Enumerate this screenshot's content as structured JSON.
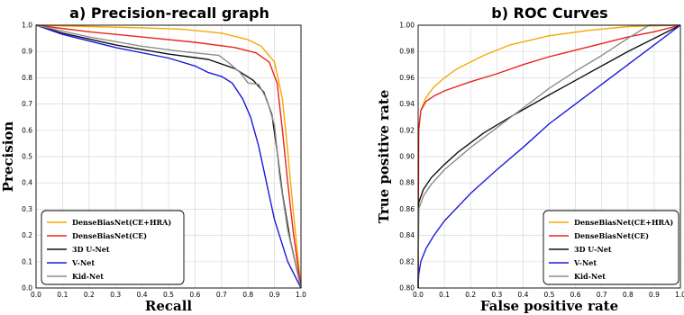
{
  "chart_data": [
    {
      "type": "line",
      "title": "a) Precision-recall graph",
      "xlabel": "Recall",
      "ylabel": "Precision",
      "xlim": [
        0,
        1
      ],
      "ylim": [
        0,
        1
      ],
      "xticks": [
        "0.0",
        "0.1",
        "0.2",
        "0.3",
        "0.4",
        "0.5",
        "0.6",
        "0.7",
        "0.8",
        "0.9",
        "1.0"
      ],
      "yticks": [
        "0.0",
        "0.1",
        "0.2",
        "0.3",
        "0.4",
        "0.5",
        "0.6",
        "0.7",
        "0.8",
        "0.9",
        "1.0"
      ],
      "grid": true,
      "legend_position": "bottom-left",
      "series": [
        {
          "name": "DenseBiasNet(CE+HRA)",
          "color": "#f5a800",
          "points": [
            [
              0,
              1.0
            ],
            [
              0.2,
              0.995
            ],
            [
              0.4,
              0.99
            ],
            [
              0.55,
              0.985
            ],
            [
              0.7,
              0.97
            ],
            [
              0.8,
              0.945
            ],
            [
              0.85,
              0.92
            ],
            [
              0.9,
              0.86
            ],
            [
              0.93,
              0.72
            ],
            [
              0.95,
              0.52
            ],
            [
              0.97,
              0.3
            ],
            [
              0.99,
              0.1
            ],
            [
              1.0,
              0.0
            ]
          ]
        },
        {
          "name": "DenseBiasNet(CE)",
          "color": "#e8231f",
          "points": [
            [
              0,
              1.0
            ],
            [
              0.2,
              0.975
            ],
            [
              0.4,
              0.955
            ],
            [
              0.6,
              0.935
            ],
            [
              0.75,
              0.915
            ],
            [
              0.83,
              0.895
            ],
            [
              0.88,
              0.86
            ],
            [
              0.91,
              0.78
            ],
            [
              0.93,
              0.6
            ],
            [
              0.95,
              0.4
            ],
            [
              0.97,
              0.22
            ],
            [
              0.99,
              0.07
            ],
            [
              1.0,
              0.0
            ]
          ]
        },
        {
          "name": "3D U-Net",
          "color": "#111111",
          "points": [
            [
              0,
              1.0
            ],
            [
              0.1,
              0.97
            ],
            [
              0.3,
              0.925
            ],
            [
              0.5,
              0.89
            ],
            [
              0.65,
              0.87
            ],
            [
              0.75,
              0.835
            ],
            [
              0.82,
              0.79
            ],
            [
              0.86,
              0.745
            ],
            [
              0.89,
              0.66
            ],
            [
              0.91,
              0.52
            ],
            [
              0.93,
              0.36
            ],
            [
              0.96,
              0.18
            ],
            [
              1.0,
              0.0
            ]
          ]
        },
        {
          "name": "V-Net",
          "color": "#1a1adb",
          "points": [
            [
              0,
              1.0
            ],
            [
              0.1,
              0.965
            ],
            [
              0.3,
              0.915
            ],
            [
              0.5,
              0.875
            ],
            [
              0.6,
              0.845
            ],
            [
              0.65,
              0.82
            ],
            [
              0.7,
              0.805
            ],
            [
              0.74,
              0.78
            ],
            [
              0.78,
              0.72
            ],
            [
              0.81,
              0.65
            ],
            [
              0.84,
              0.54
            ],
            [
              0.87,
              0.4
            ],
            [
              0.9,
              0.26
            ],
            [
              0.95,
              0.1
            ],
            [
              1.0,
              0.0
            ]
          ]
        },
        {
          "name": "Kid-Net",
          "color": "#8c8c8c",
          "points": [
            [
              0,
              1.0
            ],
            [
              0.2,
              0.955
            ],
            [
              0.4,
              0.92
            ],
            [
              0.55,
              0.9
            ],
            [
              0.69,
              0.885
            ],
            [
              0.73,
              0.855
            ],
            [
              0.77,
              0.82
            ],
            [
              0.8,
              0.78
            ],
            [
              0.84,
              0.775
            ],
            [
              0.87,
              0.72
            ],
            [
              0.9,
              0.62
            ],
            [
              0.92,
              0.42
            ],
            [
              0.95,
              0.22
            ],
            [
              1.0,
              0.0
            ]
          ]
        }
      ]
    },
    {
      "type": "line",
      "title": "b) ROC Curves",
      "xlabel": "False positive rate",
      "ylabel": "True positive rate",
      "xlim": [
        0,
        1
      ],
      "ylim": [
        0.8,
        1.0
      ],
      "xticks": [
        "0.0",
        "0.1",
        "0.2",
        "0.3",
        "0.4",
        "0.5",
        "0.6",
        "0.7",
        "0.8",
        "0.9",
        "1.0"
      ],
      "yticks": [
        "0.80",
        "0.82",
        "0.84",
        "0.86",
        "0.88",
        "0.90",
        "0.92",
        "0.94",
        "0.96",
        "0.98",
        "1.00"
      ],
      "grid": true,
      "legend_position": "bottom-right",
      "series": [
        {
          "name": "DenseBiasNet(CE+HRA)",
          "color": "#f5a800",
          "points": [
            [
              0,
              0.8
            ],
            [
              0.002,
              0.92
            ],
            [
              0.01,
              0.935
            ],
            [
              0.03,
              0.945
            ],
            [
              0.06,
              0.953
            ],
            [
              0.1,
              0.96
            ],
            [
              0.15,
              0.967
            ],
            [
              0.25,
              0.977
            ],
            [
              0.35,
              0.985
            ],
            [
              0.5,
              0.992
            ],
            [
              0.65,
              0.996
            ],
            [
              0.8,
              0.999
            ],
            [
              1.0,
              1.0
            ]
          ]
        },
        {
          "name": "DenseBiasNet(CE)",
          "color": "#e8231f",
          "points": [
            [
              0,
              0.8
            ],
            [
              0.002,
              0.92
            ],
            [
              0.01,
              0.935
            ],
            [
              0.03,
              0.942
            ],
            [
              0.06,
              0.946
            ],
            [
              0.1,
              0.95
            ],
            [
              0.2,
              0.957
            ],
            [
              0.3,
              0.963
            ],
            [
              0.4,
              0.97
            ],
            [
              0.5,
              0.976
            ],
            [
              0.6,
              0.981
            ],
            [
              0.7,
              0.986
            ],
            [
              0.8,
              0.991
            ],
            [
              0.9,
              0.995
            ],
            [
              1.0,
              1.0
            ]
          ]
        },
        {
          "name": "3D U-Net",
          "color": "#111111",
          "points": [
            [
              0,
              0.8
            ],
            [
              0.002,
              0.865
            ],
            [
              0.02,
              0.875
            ],
            [
              0.05,
              0.884
            ],
            [
              0.1,
              0.894
            ],
            [
              0.15,
              0.903
            ],
            [
              0.25,
              0.918
            ],
            [
              0.35,
              0.93
            ],
            [
              0.5,
              0.947
            ],
            [
              0.6,
              0.958
            ],
            [
              0.7,
              0.969
            ],
            [
              0.8,
              0.98
            ],
            [
              0.9,
              0.99
            ],
            [
              1.0,
              1.0
            ]
          ]
        },
        {
          "name": "V-Net",
          "color": "#1a1adb",
          "points": [
            [
              0,
              0.8
            ],
            [
              0.002,
              0.81
            ],
            [
              0.01,
              0.82
            ],
            [
              0.03,
              0.83
            ],
            [
              0.06,
              0.84
            ],
            [
              0.1,
              0.851
            ],
            [
              0.2,
              0.872
            ],
            [
              0.3,
              0.89
            ],
            [
              0.4,
              0.907
            ],
            [
              0.5,
              0.925
            ],
            [
              0.6,
              0.94
            ],
            [
              0.7,
              0.955
            ],
            [
              0.8,
              0.97
            ],
            [
              0.9,
              0.985
            ],
            [
              1.0,
              1.0
            ]
          ]
        },
        {
          "name": "Kid-Net",
          "color": "#8c8c8c",
          "points": [
            [
              0,
              0.8
            ],
            [
              0.002,
              0.86
            ],
            [
              0.02,
              0.87
            ],
            [
              0.05,
              0.879
            ],
            [
              0.1,
              0.89
            ],
            [
              0.2,
              0.907
            ],
            [
              0.3,
              0.922
            ],
            [
              0.4,
              0.937
            ],
            [
              0.5,
              0.952
            ],
            [
              0.6,
              0.965
            ],
            [
              0.7,
              0.977
            ],
            [
              0.8,
              0.99
            ],
            [
              0.88,
              1.0
            ],
            [
              1.0,
              1.0
            ]
          ]
        }
      ]
    }
  ]
}
